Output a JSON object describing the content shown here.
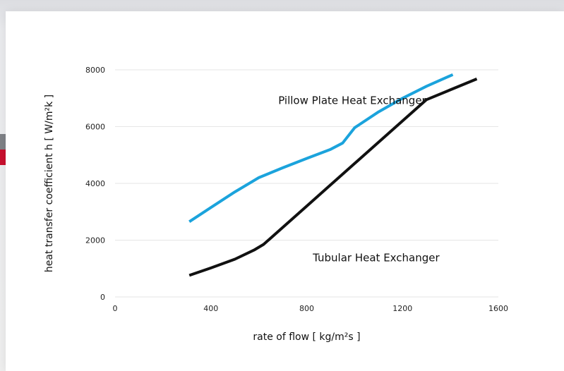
{
  "chart_data": {
    "type": "line",
    "title": "",
    "xlabel": "rate of flow [ kg/m²s ]",
    "ylabel": "heat transfer coefficient h [ W/m²k ]",
    "xlim": [
      0,
      1600
    ],
    "ylim": [
      0,
      8000
    ],
    "x_ticks": [
      "0",
      "400",
      "800",
      "1200",
      "1600"
    ],
    "y_ticks": [
      "0",
      "2000",
      "4000",
      "6000",
      "8000"
    ],
    "grid": "horizontal",
    "series": [
      {
        "name": "Pillow Plate Heat Exchanger",
        "color": "#1ba3dc",
        "points": [
          [
            310,
            2650
          ],
          [
            400,
            3150
          ],
          [
            500,
            3700
          ],
          [
            600,
            4200
          ],
          [
            700,
            4550
          ],
          [
            800,
            4880
          ],
          [
            900,
            5200
          ],
          [
            950,
            5420
          ],
          [
            1000,
            5960
          ],
          [
            1100,
            6520
          ],
          [
            1200,
            7000
          ],
          [
            1300,
            7420
          ],
          [
            1410,
            7830
          ]
        ]
      },
      {
        "name": "Tubular Heat Exchanger",
        "color": "#111111",
        "points": [
          [
            310,
            760
          ],
          [
            400,
            1020
          ],
          [
            500,
            1330
          ],
          [
            580,
            1650
          ],
          [
            620,
            1850
          ],
          [
            700,
            2450
          ],
          [
            800,
            3200
          ],
          [
            900,
            3950
          ],
          [
            1000,
            4700
          ],
          [
            1100,
            5450
          ],
          [
            1200,
            6200
          ],
          [
            1300,
            6950
          ],
          [
            1510,
            7680
          ]
        ]
      }
    ],
    "annotations": [
      {
        "text": "Pillow Plate Heat Exchanger",
        "x": 990,
        "y": 6800
      },
      {
        "text": "Tubular Heat Exchanger",
        "x": 1090,
        "y": 1250
      }
    ]
  }
}
